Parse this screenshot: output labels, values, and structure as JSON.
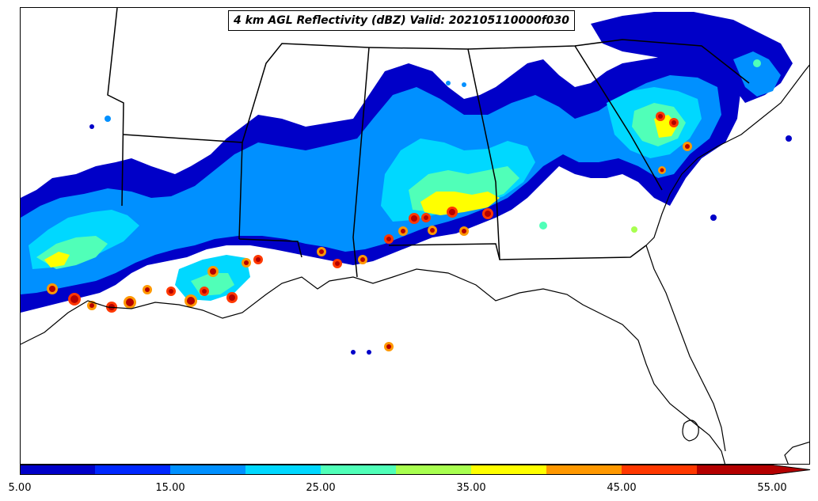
{
  "title": "4 km AGL Reflectivity (dBZ) Valid: 202105110000f030",
  "colorbar": {
    "tick_labels": [
      "5.00",
      "15.00",
      "25.00",
      "35.00",
      "45.00",
      "55.00"
    ],
    "colors": [
      "#0000c8",
      "#0028ff",
      "#0090ff",
      "#00d8ff",
      "#50ffb8",
      "#a8ff50",
      "#ffff00",
      "#ff9800",
      "#ff3800",
      "#b40000"
    ],
    "extend": "max"
  },
  "map": {
    "background": "#ffffff",
    "border_color": "#000000"
  }
}
